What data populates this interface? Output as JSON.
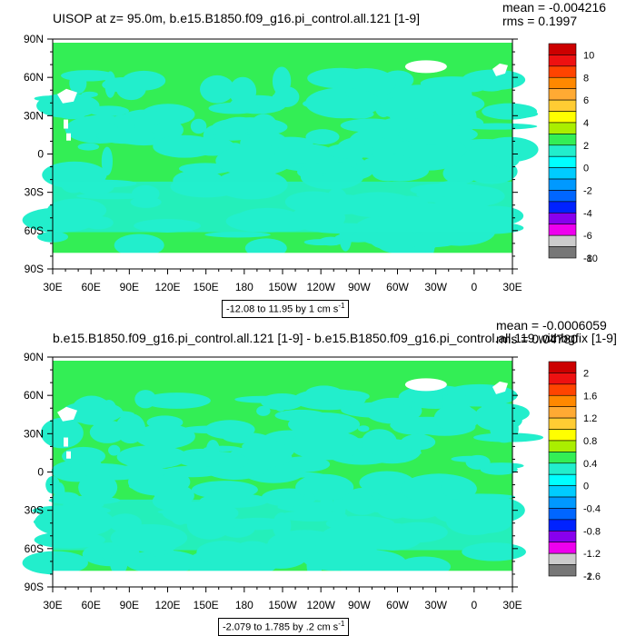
{
  "panel1": {
    "title": "UISOP at z=  95.0m, b.e15.B1850.f09_g16.pi_control.all.121 [1-9]",
    "mean": "mean = -0.004216",
    "rms": "rms = 0.1997",
    "range_text": "-12.08 to 11.95 by 1 cm s",
    "range_sup": "-1",
    "colorbar_labels": [
      "10",
      "8",
      "6",
      "4",
      "2",
      "0",
      "-2",
      "-4",
      "-6",
      "-8",
      "-10"
    ]
  },
  "panel2": {
    "title": "b.e15.B1850.f09_g16.pi_control.all.121 [1-9] - b.e15.B1850.f09_g16.pi_control.all.119.withbgfix [1-9]",
    "mean": "mean = -0.0006059",
    "rms": "rms = 0.04780",
    "range_text": "-2.079 to 1.785 by .2 cm s",
    "range_sup": "-1",
    "colorbar_labels": [
      "2",
      "1.6",
      "1.2",
      "0.8",
      "0.4",
      "0",
      "-0.4",
      "-0.8",
      "-1.2",
      "-1.6",
      "-2"
    ]
  },
  "lat_labels": [
    "90N",
    "60N",
    "30N",
    "0",
    "30S",
    "60S",
    "90S"
  ],
  "lon_labels": [
    "30E",
    "60E",
    "90E",
    "120E",
    "150E",
    "180",
    "150W",
    "120W",
    "90W",
    "60W",
    "30W",
    "0",
    "30E"
  ],
  "colors": {
    "ocean_main": "#33ee55",
    "ocean_alt": "#22eecc",
    "land": "#ffffff",
    "colorbar": [
      "#cc0000",
      "#ee1111",
      "#ff4400",
      "#ff8800",
      "#ffaa33",
      "#ffcc33",
      "#ffff00",
      "#aaee00",
      "#33ee55",
      "#22eecc",
      "#00ffff",
      "#00ccff",
      "#0099ff",
      "#0066ff",
      "#0022ff",
      "#8800ee",
      "#ee00ee",
      "#cccccc",
      "#777777"
    ]
  }
}
